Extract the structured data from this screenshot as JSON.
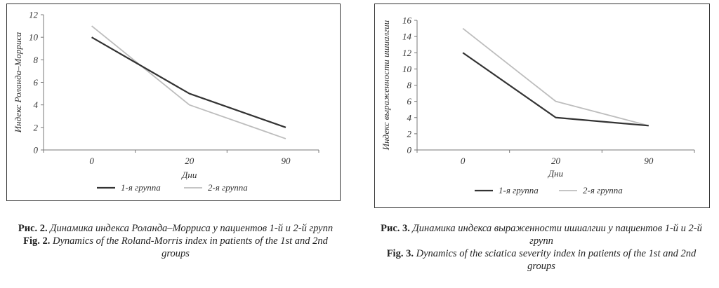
{
  "chart_data": [
    {
      "type": "line",
      "x": [
        "0",
        "20",
        "90"
      ],
      "ylabel": "Индекс Роланда–Морриса",
      "xlabel": "Дни",
      "ylim": [
        0,
        12
      ],
      "yticks": [
        0,
        2,
        4,
        6,
        8,
        10,
        12
      ],
      "legend_position": "bottom",
      "grid": false,
      "series": [
        {
          "name": "1-я группа",
          "values": [
            10,
            5,
            2
          ],
          "color": "#333333"
        },
        {
          "name": "2-я группа",
          "values": [
            11,
            4,
            1
          ],
          "color": "#bdbdbd"
        }
      ]
    },
    {
      "type": "line",
      "x": [
        "0",
        "20",
        "90"
      ],
      "ylabel": "Индекс выраженности ишиалгии",
      "xlabel": "Дни",
      "ylim": [
        0,
        16
      ],
      "yticks": [
        0,
        2,
        4,
        6,
        8,
        10,
        12,
        14,
        16
      ],
      "legend_position": "bottom",
      "grid": false,
      "series": [
        {
          "name": "1-я группа",
          "values": [
            12,
            4,
            3
          ],
          "color": "#333333"
        },
        {
          "name": "2-я группа",
          "values": [
            15,
            6,
            3
          ],
          "color": "#bdbdbd"
        }
      ]
    }
  ],
  "captions": [
    {
      "ru_label": "Рис. 2.",
      "ru_text": "Динамика индекса Роланда–Морриса у пациентов 1-й и 2-й групп",
      "en_label": "Fig. 2.",
      "en_text": "Dynamics of the Roland-Morris index in patients of the 1st and 2nd groups"
    },
    {
      "ru_label": "Рис. 3.",
      "ru_text": "Динамика индекса выраженности ишиалгии у пациентов 1-й и 2-й групп",
      "en_label": "Fig. 3.",
      "en_text": "Dynamics of the sciatica severity index in patients of the 1st and 2nd groups"
    }
  ]
}
